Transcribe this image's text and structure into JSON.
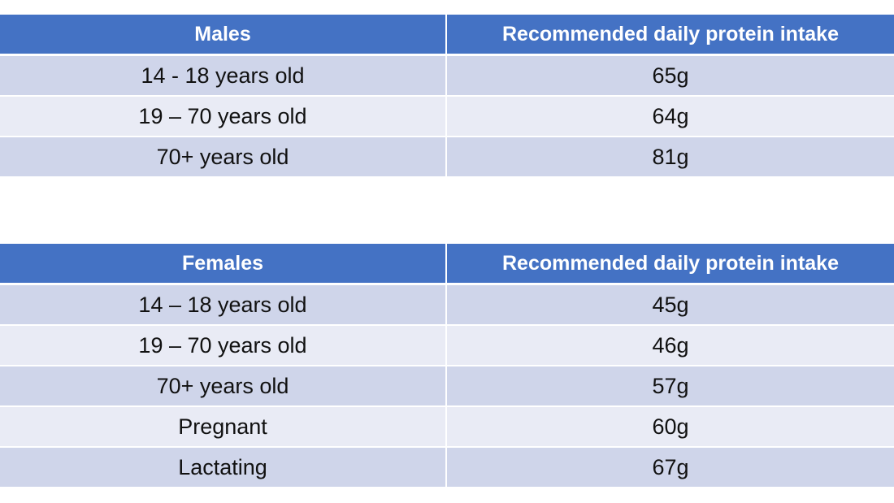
{
  "tables": [
    {
      "header": [
        "Males",
        "Recommended daily protein intake"
      ],
      "rows": [
        [
          "14 - 18 years old",
          "65g"
        ],
        [
          "19 – 70 years old",
          "64g"
        ],
        [
          "70+ years old",
          "81g"
        ]
      ]
    },
    {
      "header": [
        "Females",
        "Recommended daily protein intake"
      ],
      "rows": [
        [
          "14 – 18 years old",
          "45g"
        ],
        [
          "19 – 70 years old",
          "46g"
        ],
        [
          "70+ years old",
          "57g"
        ],
        [
          "Pregnant",
          "60g"
        ],
        [
          "Lactating",
          "67g"
        ]
      ]
    }
  ],
  "colors": {
    "header_bg": "#4472c4",
    "row_dark": "#cfd5ea",
    "row_light": "#e9ebf5"
  }
}
